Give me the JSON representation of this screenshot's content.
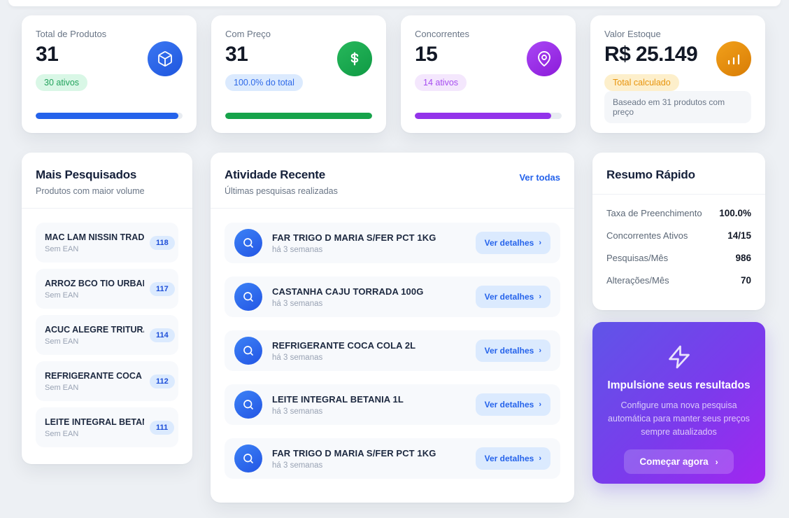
{
  "stats": [
    {
      "label": "Total de Produtos",
      "value": "31",
      "badge": "30 ativos",
      "icon": "box-icon",
      "progress": 97
    },
    {
      "label": "Com Preço",
      "value": "31",
      "badge": "100.0% do total",
      "icon": "dollar-icon",
      "progress": 100
    },
    {
      "label": "Concorrentes",
      "value": "15",
      "badge": "14 ativos",
      "icon": "map-pin-icon",
      "progress": 93
    },
    {
      "label": "Valor Estoque",
      "value": "R$ 25.149",
      "badge": "Total calculado",
      "icon": "bar-chart-icon",
      "footnote": "Baseado em 31 produtos com preço"
    }
  ],
  "most_searched": {
    "title": "Mais Pesquisados",
    "subtitle": "Produtos com maior volume",
    "items": [
      {
        "name": "MAC LAM NISSIN TRAD ...",
        "sub": "Sem EAN",
        "count": "118"
      },
      {
        "name": "ARROZ BCO TIO URBAN...",
        "sub": "Sem EAN",
        "count": "117"
      },
      {
        "name": "ACUC ALEGRE TRITURA...",
        "sub": "Sem EAN",
        "count": "114"
      },
      {
        "name": "REFRIGERANTE COCA C...",
        "sub": "Sem EAN",
        "count": "112"
      },
      {
        "name": "LEITE INTEGRAL BETANI...",
        "sub": "Sem EAN",
        "count": "111"
      }
    ]
  },
  "recent_activity": {
    "title": "Atividade Recente",
    "subtitle": "Últimas pesquisas realizadas",
    "view_all": "Ver todas",
    "detail_label": "Ver detalhes",
    "items": [
      {
        "name": "FAR TRIGO D MARIA S/FER PCT 1KG",
        "time": "há 3 semanas"
      },
      {
        "name": "CASTANHA CAJU TORRADA 100G",
        "time": "há 3 semanas"
      },
      {
        "name": "REFRIGERANTE COCA COLA 2L",
        "time": "há 3 semanas"
      },
      {
        "name": "LEITE INTEGRAL BETANIA 1L",
        "time": "há 3 semanas"
      },
      {
        "name": "FAR TRIGO D MARIA S/FER PCT 1KG",
        "time": "há 3 semanas"
      }
    ]
  },
  "quick_summary": {
    "title": "Resumo Rápido",
    "rows": [
      {
        "label": "Taxa de Preenchimento",
        "value": "100.0%"
      },
      {
        "label": "Concorrentes Ativos",
        "value": "14/15"
      },
      {
        "label": "Pesquisas/Mês",
        "value": "986"
      },
      {
        "label": "Alterações/Mês",
        "value": "70"
      }
    ]
  },
  "promo": {
    "title": "Impulsione seus resultados",
    "description": "Configure uma nova pesquisa automática para manter seus preços sempre atualizados",
    "cta": "Começar agora",
    "icon": "zap-icon",
    "gradient_from": "#5f55e8",
    "gradient_to": "#a226f0"
  },
  "colors": {
    "background": "#edf0f4",
    "accent_blue": "#2563eb",
    "accent_green": "#16a34a",
    "accent_purple": "#9333ea",
    "accent_orange": "#e8940c"
  }
}
